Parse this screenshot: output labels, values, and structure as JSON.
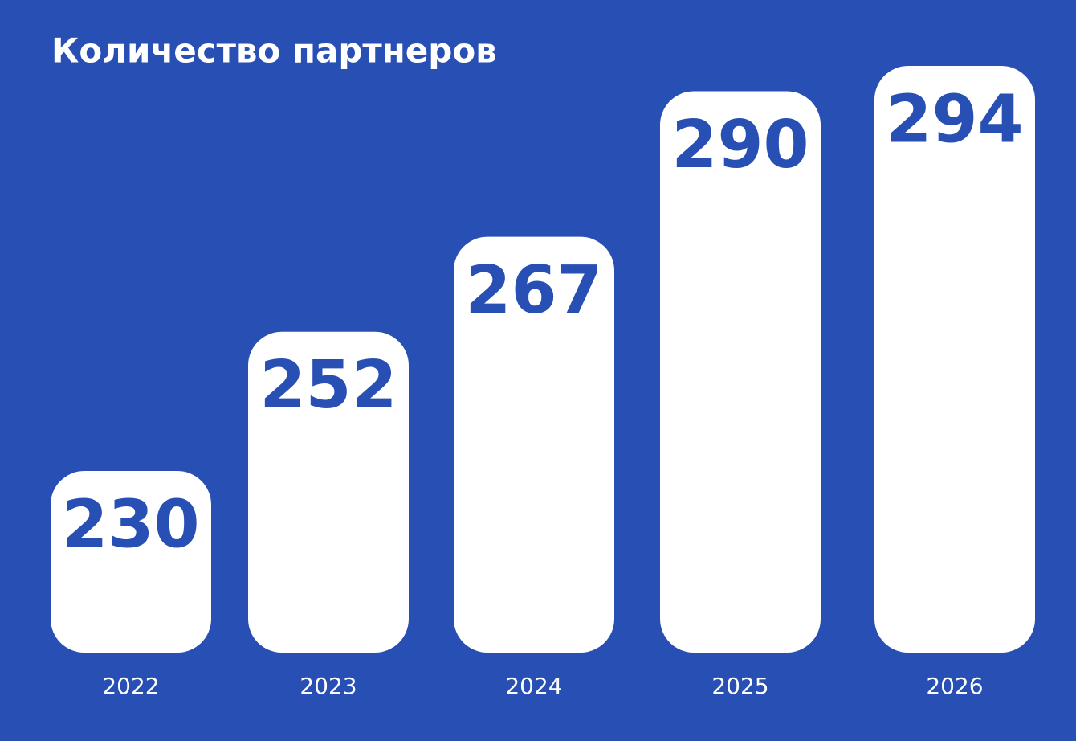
{
  "chart_data": {
    "type": "bar",
    "title": "Количество партнеров",
    "categories": [
      "2022",
      "2023",
      "2024",
      "2025",
      "2026"
    ],
    "values": [
      230,
      252,
      267,
      290,
      294
    ],
    "color": "#ffffff"
  }
}
